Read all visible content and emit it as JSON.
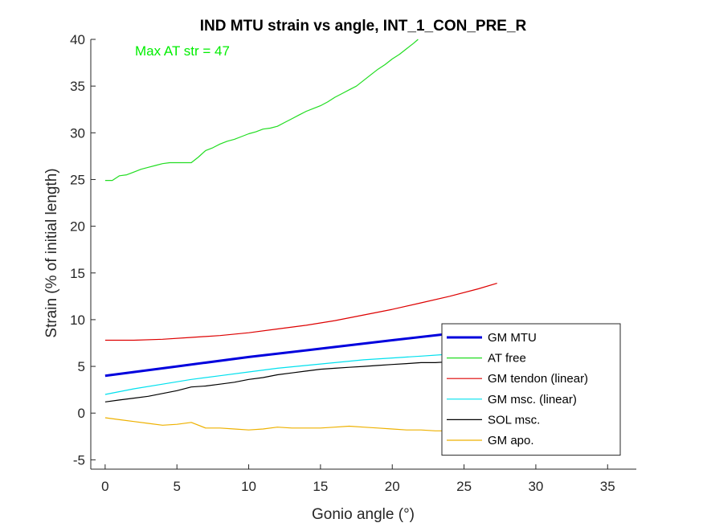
{
  "chart_data": {
    "type": "line",
    "title": "IND MTU strain vs angle, INT_1_CON_PRE_R",
    "xlabel": "Gonio angle (°)",
    "ylabel": "Strain (% of initial length)",
    "xlim": [
      -1,
      37
    ],
    "ylim": [
      -6,
      40
    ],
    "xticks": [
      0,
      5,
      10,
      15,
      20,
      25,
      30,
      35
    ],
    "yticks": [
      -5,
      0,
      5,
      10,
      15,
      20,
      25,
      30,
      35,
      40
    ],
    "grid": false,
    "legend_position": "bottom-right",
    "annotation": {
      "text": "Max AT str = 47",
      "color": "#00ee00"
    },
    "series": [
      {
        "name": "GM MTU",
        "color": "#0000dd",
        "width": 3,
        "x": [
          0,
          5,
          10,
          15,
          20,
          24,
          27.3
        ],
        "y": [
          4.0,
          5.0,
          6.0,
          6.9,
          7.8,
          8.5,
          9.0
        ]
      },
      {
        "name": "AT free",
        "color": "#22dd22",
        "width": 1.2,
        "x": [
          0,
          0.5,
          1,
          1.5,
          2,
          2.5,
          3,
          3.5,
          4,
          4.5,
          5,
          5.5,
          6,
          6.5,
          7,
          7.5,
          8,
          8.5,
          9,
          9.5,
          10,
          10.5,
          11,
          11.5,
          12,
          12.5,
          13,
          13.5,
          14,
          14.5,
          15,
          15.5,
          16,
          16.5,
          17,
          17.5,
          18,
          18.5,
          19,
          19.5,
          20,
          20.5,
          21,
          21.5,
          21.8
        ],
        "y": [
          24.9,
          24.9,
          25.4,
          25.5,
          25.8,
          26.1,
          26.3,
          26.5,
          26.7,
          26.8,
          26.8,
          26.8,
          26.8,
          27.4,
          28.1,
          28.4,
          28.8,
          29.1,
          29.3,
          29.6,
          29.9,
          30.1,
          30.4,
          30.5,
          30.7,
          31.1,
          31.5,
          31.9,
          32.3,
          32.6,
          32.9,
          33.3,
          33.8,
          34.2,
          34.6,
          35.0,
          35.6,
          36.2,
          36.8,
          37.3,
          37.9,
          38.4,
          39.0,
          39.6,
          40.0
        ]
      },
      {
        "name": "GM tendon (linear)",
        "color": "#dd0000",
        "width": 1.2,
        "x": [
          0,
          2,
          4,
          6,
          8,
          10,
          12,
          14,
          16,
          18,
          20,
          22,
          24,
          26,
          27.3
        ],
        "y": [
          7.8,
          7.8,
          7.9,
          8.1,
          8.3,
          8.6,
          9.0,
          9.4,
          9.9,
          10.5,
          11.1,
          11.8,
          12.5,
          13.3,
          13.9
        ]
      },
      {
        "name": "GM msc. (linear)",
        "color": "#00e0ee",
        "width": 1.2,
        "x": [
          0,
          2,
          4,
          6,
          8,
          10,
          12,
          14,
          16,
          18,
          20,
          22,
          24,
          26,
          27.3
        ],
        "y": [
          2.0,
          2.6,
          3.1,
          3.6,
          4.0,
          4.4,
          4.8,
          5.1,
          5.4,
          5.7,
          5.9,
          6.1,
          6.3,
          6.5,
          6.6
        ]
      },
      {
        "name": "SOL msc.",
        "color": "#000000",
        "width": 1.2,
        "x": [
          0,
          1,
          2,
          3,
          4,
          5,
          6,
          7,
          8,
          9,
          10,
          11,
          12,
          13,
          14,
          15,
          16,
          17,
          18,
          19,
          20,
          21,
          22,
          23,
          24,
          25,
          26,
          27.3
        ],
        "y": [
          1.2,
          1.4,
          1.6,
          1.8,
          2.1,
          2.4,
          2.8,
          2.9,
          3.1,
          3.3,
          3.6,
          3.8,
          4.1,
          4.3,
          4.5,
          4.7,
          4.8,
          4.9,
          5.0,
          5.1,
          5.2,
          5.3,
          5.4,
          5.4,
          5.5,
          5.6,
          5.7,
          5.8
        ]
      },
      {
        "name": "GM apo.",
        "color": "#eeb100",
        "width": 1.2,
        "x": [
          0,
          1,
          2,
          3,
          4,
          5,
          6,
          7,
          8,
          9,
          10,
          11,
          12,
          13,
          14,
          15,
          16,
          17,
          18,
          19,
          20,
          21,
          22,
          23,
          24,
          25,
          26,
          27.3
        ],
        "y": [
          -0.5,
          -0.7,
          -0.9,
          -1.1,
          -1.3,
          -1.2,
          -1.0,
          -1.6,
          -1.6,
          -1.7,
          -1.8,
          -1.7,
          -1.5,
          -1.6,
          -1.6,
          -1.6,
          -1.5,
          -1.4,
          -1.5,
          -1.6,
          -1.7,
          -1.8,
          -1.8,
          -1.9,
          -1.9,
          -2.0,
          -2.0,
          -2.1
        ]
      }
    ]
  }
}
